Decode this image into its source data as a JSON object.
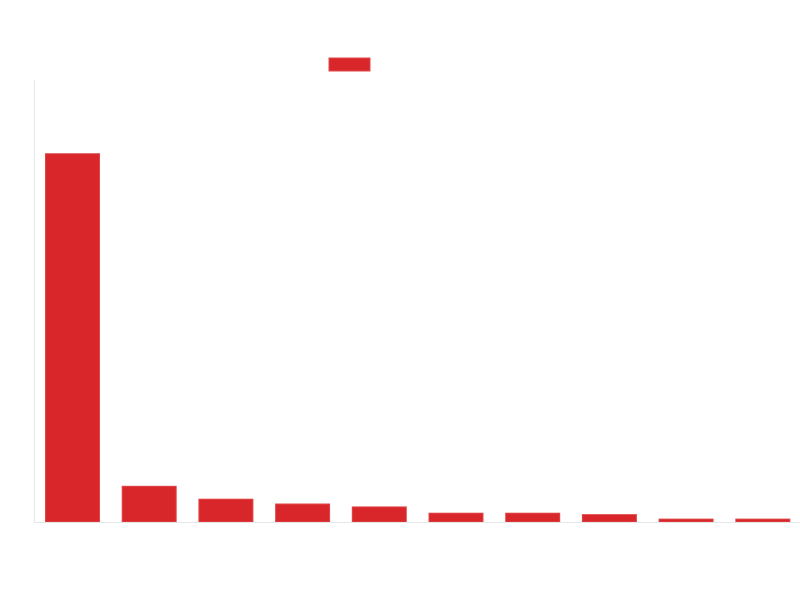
{
  "chart_data": {
    "type": "bar",
    "title": "",
    "xlabel": "",
    "ylabel": "",
    "categories": [
      "",
      "",
      "",
      "",
      "",
      "",
      "",
      "",
      "",
      ""
    ],
    "series": [
      {
        "name": "",
        "color": "#d9262b",
        "values": [
          100,
          9.7,
          6.2,
          4.9,
          4.1,
          2.4,
          2.4,
          2.0,
          0.8,
          0.8
        ]
      }
    ],
    "ylim": [
      0,
      120
    ],
    "grid": false,
    "legend": {
      "position": "top-center"
    }
  }
}
